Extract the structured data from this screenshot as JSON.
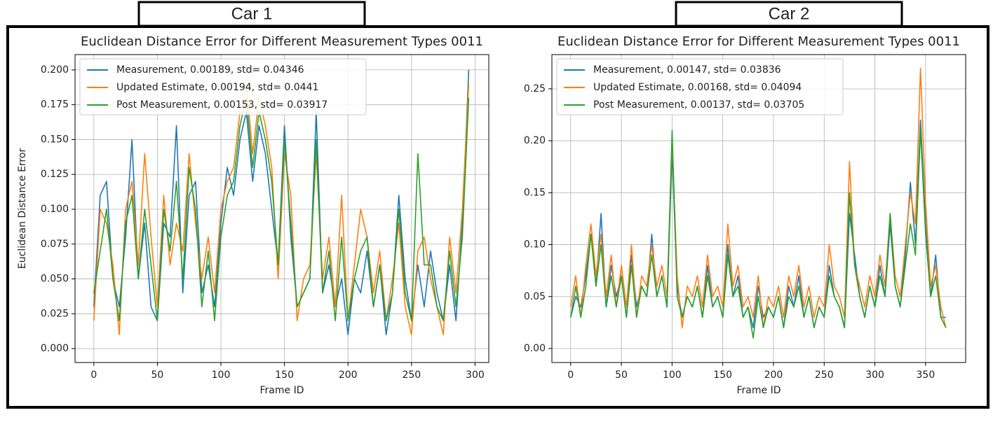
{
  "chart_data": [
    {
      "type": "line",
      "panel_label": "Car 1",
      "title": "Euclidean Distance Error for Different Measurement Types 0011",
      "xlabel": "Frame ID",
      "ylabel": "Euclidean Distance Error",
      "xlim": [
        -14.8,
        310.8
      ],
      "ylim": [
        -0.01,
        0.211
      ],
      "xticks": [
        0,
        50,
        100,
        150,
        200,
        250,
        300
      ],
      "yticks": [
        {
          "value": 0,
          "label": "0.000"
        },
        0.025,
        {
          "value": 0.05,
          "label": "0.050"
        },
        0.075,
        {
          "value": 0.1,
          "label": "0.100"
        },
        0.125,
        {
          "value": 0.15,
          "label": "0.150"
        },
        0.175,
        {
          "value": 0.2,
          "label": "0.200"
        }
      ],
      "grid": true,
      "legend": "upper left",
      "x": [
        0,
        5,
        10,
        15,
        20,
        25,
        30,
        35,
        40,
        45,
        50,
        55,
        60,
        65,
        70,
        75,
        80,
        85,
        90,
        95,
        100,
        105,
        110,
        115,
        120,
        125,
        130,
        135,
        140,
        145,
        150,
        155,
        160,
        165,
        170,
        175,
        180,
        185,
        190,
        195,
        200,
        205,
        210,
        215,
        220,
        225,
        230,
        235,
        240,
        245,
        250,
        255,
        260,
        265,
        270,
        275,
        280,
        285,
        290,
        295
      ],
      "series": [
        {
          "name": "Measurement, 0.00189, std= 0.04346",
          "color": "#1f77b4",
          "values": [
            0.03,
            0.11,
            0.12,
            0.05,
            0.03,
            0.08,
            0.15,
            0.05,
            0.09,
            0.03,
            0.02,
            0.09,
            0.08,
            0.16,
            0.04,
            0.11,
            0.12,
            0.04,
            0.06,
            0.03,
            0.09,
            0.13,
            0.11,
            0.15,
            0.17,
            0.12,
            0.16,
            0.14,
            0.1,
            0.06,
            0.16,
            0.08,
            0.03,
            0.04,
            0.05,
            0.17,
            0.04,
            0.06,
            0.03,
            0.05,
            0.01,
            0.05,
            0.04,
            0.07,
            0.03,
            0.06,
            0.01,
            0.04,
            0.11,
            0.05,
            0.02,
            0.06,
            0.03,
            0.07,
            0.04,
            0.02,
            0.06,
            0.02,
            0.09,
            0.2
          ]
        },
        {
          "name": "Updated Estimate, 0.00194, std= 0.0441",
          "color": "#ff7f0e",
          "values": [
            0.02,
            0.1,
            0.09,
            0.06,
            0.01,
            0.1,
            0.12,
            0.06,
            0.14,
            0.08,
            0.03,
            0.11,
            0.06,
            0.09,
            0.07,
            0.14,
            0.09,
            0.05,
            0.08,
            0.04,
            0.1,
            0.12,
            0.13,
            0.17,
            0.19,
            0.14,
            0.18,
            0.16,
            0.13,
            0.05,
            0.14,
            0.11,
            0.02,
            0.05,
            0.06,
            0.14,
            0.05,
            0.08,
            0.03,
            0.11,
            0.02,
            0.06,
            0.1,
            0.08,
            0.04,
            0.07,
            0.02,
            0.05,
            0.09,
            0.03,
            0.01,
            0.07,
            0.08,
            0.05,
            0.03,
            0.01,
            0.08,
            0.04,
            0.1,
            0.19
          ]
        },
        {
          "name": "Post Measurement, 0.00153, std= 0.03917",
          "color": "#2ca02c",
          "values": [
            0.04,
            0.07,
            0.1,
            0.05,
            0.02,
            0.09,
            0.11,
            0.05,
            0.1,
            0.06,
            0.02,
            0.1,
            0.07,
            0.12,
            0.05,
            0.13,
            0.1,
            0.03,
            0.07,
            0.02,
            0.08,
            0.11,
            0.12,
            0.16,
            0.18,
            0.13,
            0.17,
            0.15,
            0.12,
            0.06,
            0.15,
            0.09,
            0.03,
            0.04,
            0.05,
            0.15,
            0.04,
            0.07,
            0.02,
            0.08,
            0.02,
            0.05,
            0.07,
            0.08,
            0.03,
            0.06,
            0.02,
            0.04,
            0.1,
            0.04,
            0.02,
            0.14,
            0.06,
            0.06,
            0.03,
            0.02,
            0.07,
            0.03,
            0.08,
            0.18
          ]
        }
      ]
    },
    {
      "type": "line",
      "panel_label": "Car 2",
      "title": "Euclidean Distance Error for Different Measurement Types 0011",
      "xlabel": "Frame ID",
      "xlim": [
        -18.5,
        389.5
      ],
      "ylim": [
        -0.0135,
        0.283
      ],
      "xticks": [
        0,
        50,
        100,
        150,
        200,
        250,
        300,
        350
      ],
      "yticks": [
        {
          "value": 0,
          "label": "0.00"
        },
        0.05,
        {
          "value": 0.1,
          "label": "0.10"
        },
        0.15,
        {
          "value": 0.2,
          "label": "0.20"
        },
        0.25
      ],
      "grid": true,
      "legend": "upper left",
      "x": [
        0,
        5,
        10,
        15,
        20,
        25,
        30,
        35,
        40,
        45,
        50,
        55,
        60,
        65,
        70,
        75,
        80,
        85,
        90,
        95,
        100,
        105,
        110,
        115,
        120,
        125,
        130,
        135,
        140,
        145,
        150,
        155,
        160,
        165,
        170,
        175,
        180,
        185,
        190,
        195,
        200,
        205,
        210,
        215,
        220,
        225,
        230,
        235,
        240,
        245,
        250,
        255,
        260,
        265,
        270,
        275,
        280,
        285,
        290,
        295,
        300,
        305,
        310,
        315,
        320,
        325,
        330,
        335,
        340,
        345,
        350,
        355,
        360,
        365,
        370
      ],
      "series": [
        {
          "name": "Measurement, 0.00147, std= 0.03836",
          "color": "#1f77b4",
          "values": [
            0.03,
            0.05,
            0.04,
            0.07,
            0.11,
            0.06,
            0.13,
            0.04,
            0.08,
            0.05,
            0.07,
            0.03,
            0.09,
            0.04,
            0.06,
            0.05,
            0.11,
            0.05,
            0.07,
            0.04,
            0.19,
            0.06,
            0.03,
            0.05,
            0.04,
            0.06,
            0.03,
            0.08,
            0.04,
            0.05,
            0.03,
            0.1,
            0.05,
            0.07,
            0.03,
            0.04,
            0.02,
            0.06,
            0.03,
            0.04,
            0.03,
            0.05,
            0.02,
            0.06,
            0.04,
            0.07,
            0.03,
            0.05,
            0.02,
            0.04,
            0.03,
            0.08,
            0.05,
            0.04,
            0.02,
            0.13,
            0.09,
            0.05,
            0.03,
            0.06,
            0.04,
            0.08,
            0.05,
            0.12,
            0.06,
            0.04,
            0.09,
            0.16,
            0.1,
            0.22,
            0.12,
            0.05,
            0.09,
            0.03,
            0.03
          ]
        },
        {
          "name": "Updated Estimate, 0.00168, std= 0.04094",
          "color": "#ff7f0e",
          "values": [
            0.04,
            0.07,
            0.03,
            0.08,
            0.12,
            0.07,
            0.11,
            0.05,
            0.09,
            0.04,
            0.08,
            0.04,
            0.1,
            0.03,
            0.07,
            0.06,
            0.1,
            0.06,
            0.08,
            0.05,
            0.2,
            0.07,
            0.02,
            0.06,
            0.05,
            0.07,
            0.04,
            0.09,
            0.05,
            0.06,
            0.04,
            0.12,
            0.06,
            0.08,
            0.04,
            0.05,
            0.03,
            0.07,
            0.02,
            0.05,
            0.04,
            0.06,
            0.03,
            0.07,
            0.05,
            0.08,
            0.04,
            0.06,
            0.03,
            0.05,
            0.04,
            0.1,
            0.06,
            0.05,
            0.03,
            0.18,
            0.08,
            0.06,
            0.04,
            0.07,
            0.05,
            0.09,
            0.06,
            0.13,
            0.07,
            0.05,
            0.1,
            0.15,
            0.12,
            0.27,
            0.14,
            0.06,
            0.08,
            0.04,
            0.02
          ]
        },
        {
          "name": "Post Measurement, 0.00137, std= 0.03705",
          "color": "#2ca02c",
          "values": [
            0.03,
            0.06,
            0.03,
            0.06,
            0.11,
            0.06,
            0.1,
            0.04,
            0.07,
            0.04,
            0.07,
            0.03,
            0.08,
            0.03,
            0.06,
            0.05,
            0.09,
            0.05,
            0.07,
            0.04,
            0.21,
            0.05,
            0.03,
            0.05,
            0.04,
            0.06,
            0.03,
            0.07,
            0.04,
            0.05,
            0.03,
            0.09,
            0.05,
            0.06,
            0.03,
            0.04,
            0.01,
            0.05,
            0.02,
            0.04,
            0.03,
            0.05,
            0.02,
            0.05,
            0.04,
            0.06,
            0.03,
            0.05,
            0.02,
            0.04,
            0.03,
            0.07,
            0.05,
            0.04,
            0.02,
            0.15,
            0.08,
            0.05,
            0.03,
            0.06,
            0.04,
            0.07,
            0.05,
            0.13,
            0.06,
            0.04,
            0.08,
            0.12,
            0.09,
            0.21,
            0.11,
            0.05,
            0.07,
            0.03,
            0.02
          ]
        }
      ]
    }
  ]
}
